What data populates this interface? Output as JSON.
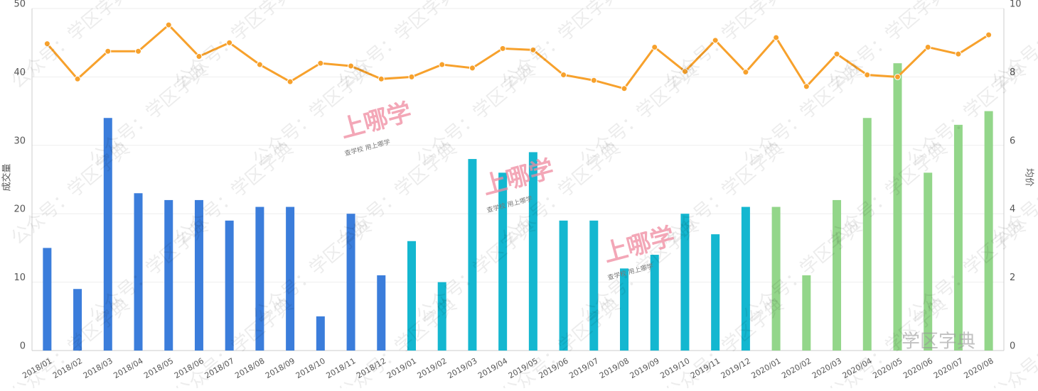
{
  "chart_data": {
    "type": "bar",
    "categories": [
      "2018/01",
      "2018/02",
      "2018/03",
      "2018/04",
      "2018/05",
      "2018/06",
      "2018/07",
      "2018/08",
      "2018/09",
      "2018/10",
      "2018/11",
      "2018/12",
      "2019/01",
      "2019/02",
      "2019/03",
      "2019/04",
      "2019/05",
      "2019/06",
      "2019/07",
      "2019/08",
      "2019/09",
      "2019/10",
      "2019/11",
      "2019/12",
      "2020/01",
      "2020/02",
      "2020/03",
      "2020/04",
      "2020/05",
      "2020/06",
      "2020/07",
      "2020/08"
    ],
    "series": [
      {
        "type": "bar",
        "colors": [
          "#3b7ddb",
          "#3b7ddb",
          "#3b7ddb",
          "#3b7ddb",
          "#3b7ddb",
          "#3b7ddb",
          "#3b7ddb",
          "#3b7ddb",
          "#3b7ddb",
          "#3b7ddb",
          "#3b7ddb",
          "#3b7ddb",
          "#14b7d0",
          "#14b7d0",
          "#14b7d0",
          "#14b7d0",
          "#14b7d0",
          "#14b7d0",
          "#14b7d0",
          "#14b7d0",
          "#14b7d0",
          "#14b7d0",
          "#14b7d0",
          "#14b7d0",
          "#93d68a",
          "#93d68a",
          "#93d68a",
          "#93d68a",
          "#93d68a",
          "#93d68a",
          "#93d68a",
          "#93d68a"
        ],
        "values": [
          15,
          9,
          34,
          23,
          22,
          22,
          19,
          21,
          21,
          5,
          20,
          11,
          16,
          10,
          28,
          26,
          29,
          19,
          19,
          12,
          14,
          20,
          17,
          21,
          21,
          11,
          22,
          34,
          42,
          26,
          33,
          35
        ]
      },
      {
        "type": "line",
        "axis": "y2",
        "color": "#f7a12c",
        "values": [
          8.97,
          7.94,
          8.75,
          8.75,
          9.52,
          8.6,
          9.0,
          8.36,
          7.86,
          8.4,
          8.32,
          7.94,
          8.0,
          8.36,
          8.26,
          8.83,
          8.79,
          8.06,
          7.9,
          7.66,
          8.87,
          8.16,
          9.07,
          8.14,
          9.15,
          7.72,
          8.67,
          8.06,
          8.0,
          8.87,
          8.67,
          9.23
        ]
      }
    ],
    "ylabel": "成交量",
    "y2label": "均价",
    "ylim": [
      0,
      50
    ],
    "yticks": [
      0,
      10,
      20,
      30,
      40,
      50
    ],
    "y2lim": [
      0,
      10
    ],
    "y2ticks": [
      0,
      2,
      4,
      6,
      8,
      10
    ],
    "grid": true,
    "watermark": "公众号：学区字典",
    "logo": "上哪学",
    "logo_sub": "查学校  用上哪学",
    "brand": "学区字典"
  }
}
